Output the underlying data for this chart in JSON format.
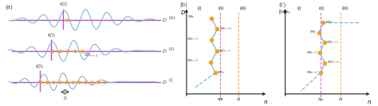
{
  "panel_a_label": "(a)",
  "panel_b_label": "(b)",
  "panel_c_label": "(c)",
  "wave_color": "#7ab8d9",
  "line_color": "#c050c0",
  "dot_color": "#f5a020",
  "text_color": "#444444",
  "vline_b_color": "#c050c0",
  "vline_b2_color": "#f5a020",
  "vline_c_color": "#c050c0",
  "vline_c2_color": "#f5a020"
}
